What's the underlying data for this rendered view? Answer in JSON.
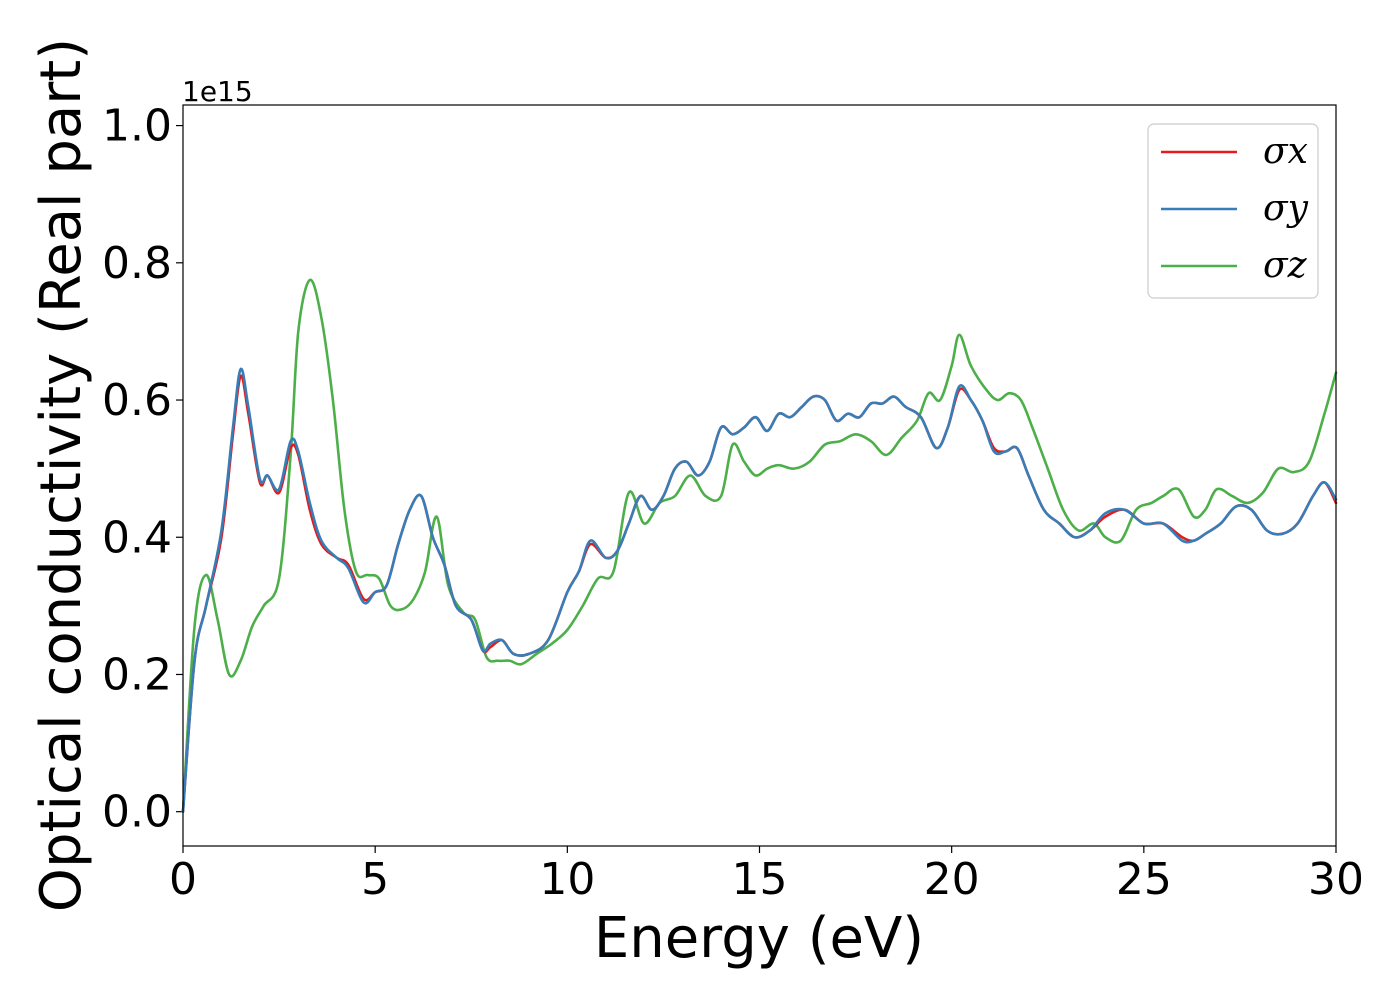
{
  "chart_data": {
    "type": "line",
    "title": "",
    "xlabel": "Energy (eV)",
    "ylabel": "Optical conductivity (Real part)",
    "y_offset_label": "1e15",
    "xlim": [
      0,
      30
    ],
    "ylim": [
      -0.05,
      1.03
    ],
    "xticks": [
      0,
      5,
      10,
      15,
      20,
      25,
      30
    ],
    "xtick_labels": [
      "0",
      "5",
      "10",
      "15",
      "20",
      "25",
      "30"
    ],
    "yticks": [
      0.0,
      0.2,
      0.4,
      0.6,
      0.8,
      1.0
    ],
    "ytick_labels": [
      "0.0",
      "0.2",
      "0.4",
      "0.6",
      "0.8",
      "1.0"
    ],
    "grid": false,
    "legend_position": "top-right",
    "series": [
      {
        "name": "σx",
        "color": "#e41a1c",
        "x": [
          0,
          0.3,
          0.6,
          1.0,
          1.3,
          1.5,
          1.7,
          2.0,
          2.2,
          2.5,
          2.8,
          3.0,
          3.3,
          3.6,
          4.0,
          4.3,
          4.7,
          5.0,
          5.3,
          5.6,
          5.9,
          6.2,
          6.5,
          6.8,
          7.1,
          7.5,
          7.8,
          8.0,
          8.3,
          8.6,
          9.0,
          9.5,
          10.0,
          10.3,
          10.6,
          11.0,
          11.3,
          11.6,
          11.9,
          12.2,
          12.5,
          12.8,
          13.1,
          13.4,
          13.7,
          14.0,
          14.3,
          14.6,
          14.9,
          15.2,
          15.5,
          15.8,
          16.1,
          16.4,
          16.7,
          17.0,
          17.3,
          17.6,
          17.9,
          18.2,
          18.5,
          18.8,
          19.2,
          19.6,
          19.9,
          20.2,
          20.5,
          20.8,
          21.1,
          21.4,
          21.7,
          22.0,
          22.4,
          22.8,
          23.2,
          23.6,
          24.0,
          24.5,
          25.0,
          25.5,
          26.0,
          26.3,
          26.6,
          27.0,
          27.4,
          27.8,
          28.2,
          28.6,
          29.0,
          29.4,
          29.7,
          30.0
        ],
        "values": [
          0.0,
          0.22,
          0.3,
          0.4,
          0.55,
          0.635,
          0.58,
          0.48,
          0.49,
          0.465,
          0.53,
          0.52,
          0.44,
          0.39,
          0.37,
          0.36,
          0.31,
          0.32,
          0.33,
          0.39,
          0.44,
          0.46,
          0.4,
          0.36,
          0.3,
          0.28,
          0.235,
          0.24,
          0.25,
          0.23,
          0.23,
          0.25,
          0.32,
          0.35,
          0.39,
          0.37,
          0.38,
          0.42,
          0.46,
          0.44,
          0.46,
          0.5,
          0.51,
          0.49,
          0.51,
          0.56,
          0.55,
          0.56,
          0.575,
          0.555,
          0.58,
          0.575,
          0.59,
          0.605,
          0.6,
          0.57,
          0.58,
          0.575,
          0.595,
          0.595,
          0.605,
          0.59,
          0.575,
          0.53,
          0.56,
          0.615,
          0.6,
          0.57,
          0.53,
          0.525,
          0.53,
          0.49,
          0.44,
          0.42,
          0.4,
          0.41,
          0.43,
          0.44,
          0.42,
          0.42,
          0.4,
          0.395,
          0.405,
          0.42,
          0.445,
          0.44,
          0.41,
          0.405,
          0.42,
          0.46,
          0.48,
          0.45
        ]
      },
      {
        "name": "σy",
        "color": "#377eb8",
        "x": [
          0,
          0.3,
          0.6,
          1.0,
          1.3,
          1.5,
          1.7,
          2.0,
          2.2,
          2.5,
          2.8,
          3.0,
          3.3,
          3.6,
          4.0,
          4.3,
          4.7,
          5.0,
          5.3,
          5.6,
          5.9,
          6.2,
          6.5,
          6.8,
          7.1,
          7.5,
          7.8,
          8.0,
          8.3,
          8.6,
          9.0,
          9.5,
          10.0,
          10.3,
          10.6,
          11.0,
          11.3,
          11.6,
          11.9,
          12.2,
          12.5,
          12.8,
          13.1,
          13.4,
          13.7,
          14.0,
          14.3,
          14.6,
          14.9,
          15.2,
          15.5,
          15.8,
          16.1,
          16.4,
          16.7,
          17.0,
          17.3,
          17.6,
          17.9,
          18.2,
          18.5,
          18.8,
          19.2,
          19.6,
          19.9,
          20.2,
          20.5,
          20.8,
          21.1,
          21.4,
          21.7,
          22.0,
          22.4,
          22.8,
          23.2,
          23.6,
          24.0,
          24.5,
          25.0,
          25.5,
          26.0,
          26.3,
          26.6,
          27.0,
          27.4,
          27.8,
          28.2,
          28.6,
          29.0,
          29.4,
          29.7,
          30.0
        ],
        "values": [
          0.0,
          0.22,
          0.3,
          0.41,
          0.56,
          0.645,
          0.59,
          0.485,
          0.49,
          0.47,
          0.54,
          0.525,
          0.45,
          0.395,
          0.37,
          0.355,
          0.305,
          0.32,
          0.33,
          0.39,
          0.44,
          0.46,
          0.4,
          0.36,
          0.3,
          0.28,
          0.235,
          0.245,
          0.25,
          0.23,
          0.23,
          0.25,
          0.32,
          0.35,
          0.395,
          0.37,
          0.38,
          0.42,
          0.46,
          0.44,
          0.46,
          0.5,
          0.51,
          0.49,
          0.51,
          0.56,
          0.55,
          0.56,
          0.575,
          0.555,
          0.58,
          0.575,
          0.59,
          0.605,
          0.6,
          0.57,
          0.58,
          0.575,
          0.595,
          0.595,
          0.605,
          0.59,
          0.575,
          0.53,
          0.56,
          0.62,
          0.6,
          0.57,
          0.525,
          0.525,
          0.53,
          0.49,
          0.44,
          0.42,
          0.4,
          0.41,
          0.435,
          0.44,
          0.42,
          0.42,
          0.395,
          0.395,
          0.405,
          0.42,
          0.445,
          0.44,
          0.41,
          0.405,
          0.42,
          0.46,
          0.48,
          0.455
        ]
      },
      {
        "name": "σz",
        "color": "#4daf4a",
        "x": [
          0,
          0.3,
          0.6,
          0.9,
          1.2,
          1.5,
          1.8,
          2.1,
          2.5,
          2.8,
          3.0,
          3.3,
          3.6,
          3.9,
          4.2,
          4.5,
          4.8,
          5.1,
          5.4,
          5.7,
          6.0,
          6.3,
          6.6,
          6.9,
          7.3,
          7.6,
          7.9,
          8.2,
          8.5,
          8.8,
          9.2,
          9.6,
          10.0,
          10.4,
          10.8,
          11.2,
          11.6,
          12.0,
          12.4,
          12.8,
          13.2,
          13.6,
          14.0,
          14.3,
          14.6,
          14.9,
          15.2,
          15.5,
          15.9,
          16.3,
          16.7,
          17.1,
          17.5,
          17.9,
          18.3,
          18.7,
          19.1,
          19.4,
          19.7,
          20.0,
          20.2,
          20.5,
          20.9,
          21.2,
          21.5,
          21.8,
          22.1,
          22.5,
          22.9,
          23.3,
          23.7,
          24.0,
          24.4,
          24.8,
          25.2,
          25.5,
          25.9,
          26.3,
          26.6,
          26.9,
          27.3,
          27.7,
          28.1,
          28.5,
          28.9,
          29.3,
          29.7,
          30.0
        ],
        "values": [
          0.0,
          0.27,
          0.345,
          0.28,
          0.2,
          0.22,
          0.27,
          0.3,
          0.34,
          0.52,
          0.7,
          0.775,
          0.72,
          0.6,
          0.44,
          0.35,
          0.345,
          0.34,
          0.3,
          0.295,
          0.31,
          0.35,
          0.43,
          0.33,
          0.29,
          0.28,
          0.225,
          0.22,
          0.22,
          0.215,
          0.23,
          0.245,
          0.265,
          0.3,
          0.34,
          0.35,
          0.465,
          0.42,
          0.45,
          0.46,
          0.49,
          0.46,
          0.46,
          0.535,
          0.51,
          0.49,
          0.5,
          0.505,
          0.5,
          0.51,
          0.535,
          0.54,
          0.55,
          0.54,
          0.52,
          0.545,
          0.57,
          0.61,
          0.6,
          0.65,
          0.695,
          0.65,
          0.615,
          0.6,
          0.61,
          0.6,
          0.56,
          0.5,
          0.44,
          0.41,
          0.42,
          0.4,
          0.395,
          0.44,
          0.45,
          0.46,
          0.47,
          0.43,
          0.44,
          0.47,
          0.46,
          0.45,
          0.465,
          0.5,
          0.495,
          0.51,
          0.58,
          0.64
        ]
      }
    ]
  }
}
